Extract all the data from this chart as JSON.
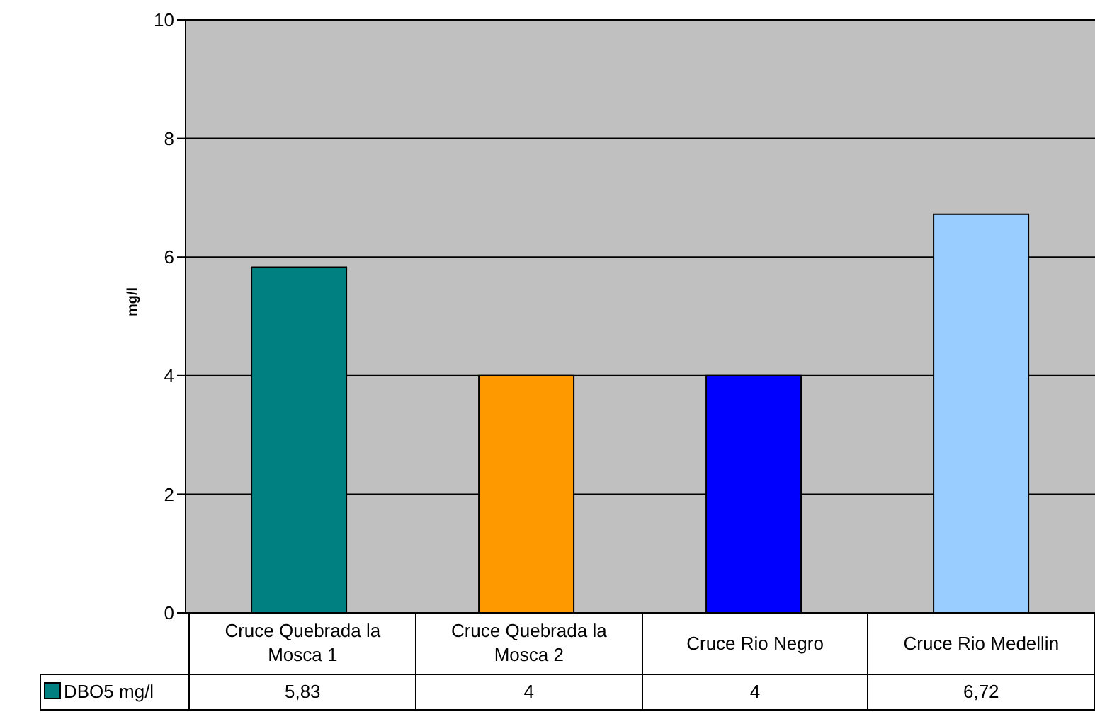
{
  "chart_data": {
    "type": "bar",
    "ylabel": "mg/l",
    "categories": [
      "Cruce Quebrada la Mosca 1",
      "Cruce Quebrada la Mosca 2",
      "Cruce Rio Negro",
      "Cruce Rio Medellin"
    ],
    "series": [
      {
        "name": "DBO5 mg/l",
        "color": "#008080",
        "colors": [
          "#008080",
          "#ff9900",
          "#0000ff",
          "#99ccff"
        ],
        "values": [
          5.83,
          4,
          4,
          6.72
        ],
        "value_labels": [
          "5,83",
          "4",
          "4",
          "6,72"
        ]
      }
    ],
    "ylim": [
      0,
      10
    ],
    "yticks": [
      0,
      2,
      4,
      6,
      8,
      10
    ],
    "grid": "y",
    "legend": "bottom left"
  }
}
